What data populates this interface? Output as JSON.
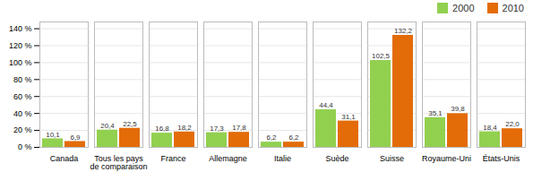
{
  "chart_data": {
    "type": "bar",
    "categories": [
      "Canada",
      "Tous les pays\nde comparaison",
      "France",
      "Allemagne",
      "Italie",
      "Suède",
      "Suisse",
      "Royaume-Uni",
      "États-Unis"
    ],
    "series": [
      {
        "name": "2000",
        "color": "#92d050",
        "values": [
          10.1,
          20.4,
          16.8,
          17.3,
          6.2,
          44.4,
          102.5,
          35.1,
          18.4
        ],
        "value_labels": [
          "10,1",
          "20,4",
          "16,8",
          "17,3",
          "6,2",
          "44,4",
          "102,5",
          "35,1",
          "18,4"
        ]
      },
      {
        "name": "2010",
        "color": "#e36c09",
        "values": [
          6.9,
          22.5,
          18.2,
          17.8,
          6.2,
          31.1,
          132.2,
          39.8,
          22.0
        ],
        "value_labels": [
          "6,9",
          "22,5",
          "18,2",
          "17,8",
          "6,2",
          "31,1",
          "132,2",
          "39,8",
          "22,0"
        ]
      }
    ],
    "ylim": [
      0,
      148
    ],
    "yticks": [
      {
        "value": 0,
        "label": "0 %"
      },
      {
        "value": 20,
        "label": "20 %"
      },
      {
        "value": 40,
        "label": "40 %"
      },
      {
        "value": 60,
        "label": "60 %"
      },
      {
        "value": 80,
        "label": "80 %"
      },
      {
        "value": 100,
        "label": "100 %"
      },
      {
        "value": 120,
        "label": "120 %"
      },
      {
        "value": 140,
        "label": "140 %"
      }
    ],
    "grid": true,
    "legend": "upper right",
    "data_labels": true
  }
}
